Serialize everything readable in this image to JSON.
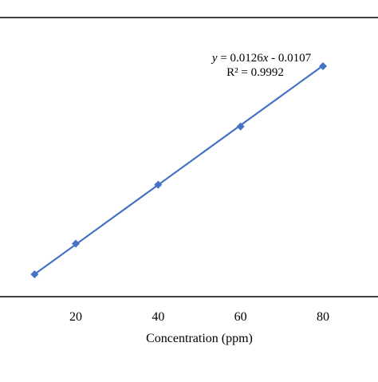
{
  "chart_data": {
    "type": "scatter",
    "title": "",
    "xlabel": "Concentration (ppm)",
    "ylabel": "",
    "x_ticks": [
      "20",
      "40",
      "60",
      "80"
    ],
    "xlim": [
      0,
      95
    ],
    "series": [
      {
        "name": "",
        "marker": "diamond",
        "color": "#4472C4",
        "points": [
          {
            "x": 10,
            "y": 0.115
          },
          {
            "x": 20,
            "y": 0.245
          },
          {
            "x": 40,
            "y": 0.494
          },
          {
            "x": 60,
            "y": 0.74
          },
          {
            "x": 80,
            "y": 0.995
          }
        ]
      }
    ],
    "trendline": {
      "type": "linear",
      "slope": 0.0126,
      "intercept": -0.0107,
      "x_range": [
        10,
        80
      ],
      "color": "#4472C4"
    },
    "annotations": {
      "equation_prefix": "y",
      "equation_middle": " = 0.0126",
      "equation_var": "x",
      "equation_suffix": " - 0.0107",
      "r_squared": "R² = 0.9992"
    },
    "grid": false,
    "legend": "none"
  }
}
